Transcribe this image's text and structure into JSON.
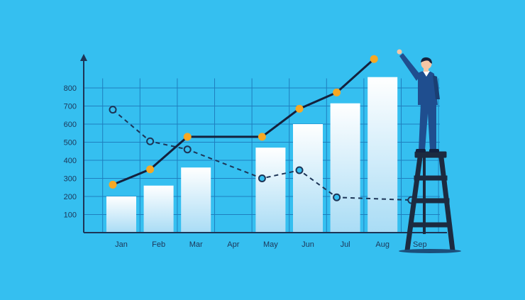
{
  "chart_data": {
    "type": "bar",
    "title": "",
    "xlabel": "",
    "ylabel": "",
    "categories": [
      "Jan",
      "Feb",
      "Mar",
      "Apr",
      "May",
      "Jun",
      "Jul",
      "Aug",
      "Sep"
    ],
    "y_ticks": [
      100,
      200,
      300,
      400,
      500,
      600,
      700,
      800
    ],
    "ylim": [
      0,
      900
    ],
    "grid": true,
    "series": [
      {
        "type": "bar",
        "values": [
          200,
          260,
          360,
          null,
          470,
          600,
          715,
          860,
          null
        ]
      },
      {
        "type": "line",
        "style": "solid",
        "values": [
          265,
          350,
          530,
          null,
          530,
          685,
          775,
          960,
          null
        ]
      },
      {
        "type": "line",
        "style": "dashed",
        "values": [
          680,
          505,
          460,
          null,
          300,
          345,
          195,
          null,
          180
        ]
      }
    ],
    "colors": {
      "background": "#35bff0",
      "grid": "#1f7fbf",
      "axis": "#1d3557",
      "bar_top": "#ffffff",
      "bar_bottom": "#a9dcf5",
      "solid_line": "#14213d",
      "solid_marker": "#f7a823",
      "dashed_line": "#1d3557",
      "person_suit": "#1f4e8f",
      "ladder": "#1c2b40"
    },
    "illustration": {
      "figure": "person-on-ladder",
      "icon": "businessman-icon"
    }
  }
}
